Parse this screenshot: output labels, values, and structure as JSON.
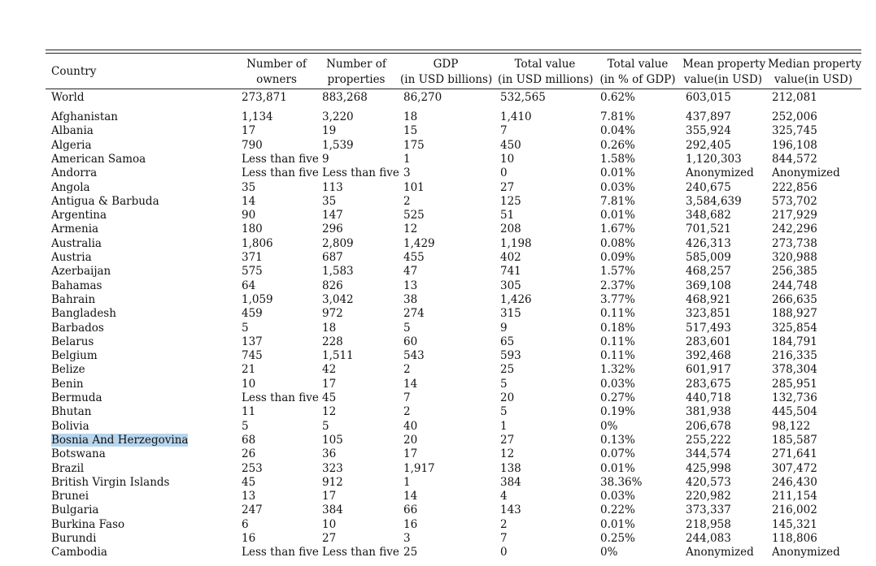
{
  "table": {
    "headers": {
      "country": "Country",
      "owners": [
        "Number of",
        "owners"
      ],
      "properties": [
        "Number of",
        "properties"
      ],
      "gdp": [
        "GDP",
        "(in USD billions)"
      ],
      "total_value": [
        "Total value",
        "(in USD millions)"
      ],
      "total_pct": [
        "Total value",
        "(in % of GDP)"
      ],
      "mean": [
        "Mean property",
        "value(in USD)"
      ],
      "median": [
        "Median property",
        "value(in USD)"
      ]
    },
    "world": [
      "World",
      "273,871",
      "883,268",
      "86,270",
      "532,565",
      "0.62%",
      "603,015",
      "212,081"
    ],
    "rows": [
      [
        "Afghanistan",
        "1,134",
        "3,220",
        "18",
        "1,410",
        "7.81%",
        "437,897",
        "252,006"
      ],
      [
        "Albania",
        "17",
        "19",
        "15",
        "7",
        "0.04%",
        "355,924",
        "325,745"
      ],
      [
        "Algeria",
        "790",
        "1,539",
        "175",
        "450",
        "0.26%",
        "292,405",
        "196,108"
      ],
      [
        "American Samoa",
        "Less than five",
        "9",
        "1",
        "10",
        "1.58%",
        "1,120,303",
        "844,572"
      ],
      [
        "Andorra",
        "Less than five",
        "Less than five",
        "3",
        "0",
        "0.01%",
        "Anonymized",
        "Anonymized"
      ],
      [
        "Angola",
        "35",
        "113",
        "101",
        "27",
        "0.03%",
        "240,675",
        "222,856"
      ],
      [
        "Antigua & Barbuda",
        "14",
        "35",
        "2",
        "125",
        "7.81%",
        "3,584,639",
        "573,702"
      ],
      [
        "Argentina",
        "90",
        "147",
        "525",
        "51",
        "0.01%",
        "348,682",
        "217,929"
      ],
      [
        "Armenia",
        "180",
        "296",
        "12",
        "208",
        "1.67%",
        "701,521",
        "242,296"
      ],
      [
        "Australia",
        "1,806",
        "2,809",
        "1,429",
        "1,198",
        "0.08%",
        "426,313",
        "273,738"
      ],
      [
        "Austria",
        "371",
        "687",
        "455",
        "402",
        "0.09%",
        "585,009",
        "320,988"
      ],
      [
        "Azerbaijan",
        "575",
        "1,583",
        "47",
        "741",
        "1.57%",
        "468,257",
        "256,385"
      ],
      [
        "Bahamas",
        "64",
        "826",
        "13",
        "305",
        "2.37%",
        "369,108",
        "244,748"
      ],
      [
        "Bahrain",
        "1,059",
        "3,042",
        "38",
        "1,426",
        "3.77%",
        "468,921",
        "266,635"
      ],
      [
        "Bangladesh",
        "459",
        "972",
        "274",
        "315",
        "0.11%",
        "323,851",
        "188,927"
      ],
      [
        "Barbados",
        "5",
        "18",
        "5",
        "9",
        "0.18%",
        "517,493",
        "325,854"
      ],
      [
        "Belarus",
        "137",
        "228",
        "60",
        "65",
        "0.11%",
        "283,601",
        "184,791"
      ],
      [
        "Belgium",
        "745",
        "1,511",
        "543",
        "593",
        "0.11%",
        "392,468",
        "216,335"
      ],
      [
        "Belize",
        "21",
        "42",
        "2",
        "25",
        "1.32%",
        "601,917",
        "378,304"
      ],
      [
        "Benin",
        "10",
        "17",
        "14",
        "5",
        "0.03%",
        "283,675",
        "285,951"
      ],
      [
        "Bermuda",
        "Less than five",
        "45",
        "7",
        "20",
        "0.27%",
        "440,718",
        "132,736"
      ],
      [
        "Bhutan",
        "11",
        "12",
        "2",
        "5",
        "0.19%",
        "381,938",
        "445,504"
      ],
      [
        "Bolivia",
        "5",
        "5",
        "40",
        "1",
        "0%",
        "206,678",
        "98,122"
      ],
      [
        "Bosnia And Herzegovina",
        "68",
        "105",
        "20",
        "27",
        "0.13%",
        "255,222",
        "185,587"
      ],
      [
        "Botswana",
        "26",
        "36",
        "17",
        "12",
        "0.07%",
        "344,574",
        "271,641"
      ],
      [
        "Brazil",
        "253",
        "323",
        "1,917",
        "138",
        "0.01%",
        "425,998",
        "307,472"
      ],
      [
        "British Virgin Islands",
        "45",
        "912",
        "1",
        "384",
        "38.36%",
        "420,573",
        "246,430"
      ],
      [
        "Brunei",
        "13",
        "17",
        "14",
        "4",
        "0.03%",
        "220,982",
        "211,154"
      ],
      [
        "Bulgaria",
        "247",
        "384",
        "66",
        "143",
        "0.22%",
        "373,337",
        "216,002"
      ],
      [
        "Burkina Faso",
        "6",
        "10",
        "16",
        "2",
        "0.01%",
        "218,958",
        "145,321"
      ],
      [
        "Burundi",
        "16",
        "27",
        "3",
        "7",
        "0.25%",
        "244,083",
        "118,806"
      ],
      [
        "Cambodia",
        "Less than five",
        "Less than five",
        "25",
        "0",
        "0%",
        "Anonymized",
        "Anonymized"
      ]
    ],
    "highlighted_row": 23
  }
}
